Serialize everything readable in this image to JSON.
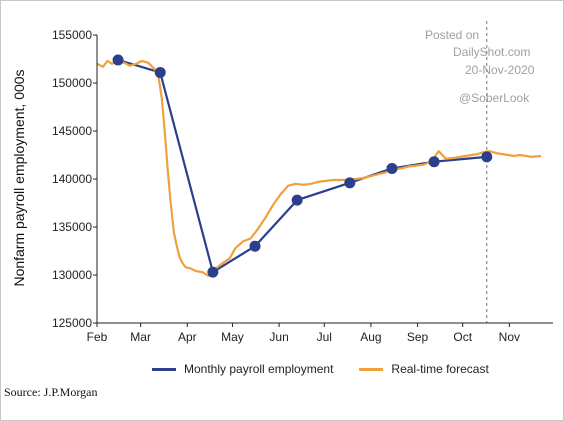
{
  "chart_data": {
    "type": "line",
    "ylabel": "Nonfarm payroll employment, 000s",
    "xlabel": "",
    "x_tick_labels": [
      "Feb",
      "Mar",
      "Apr",
      "May",
      "Jun",
      "Jul",
      "Aug",
      "Sep",
      "Oct",
      "Nov"
    ],
    "y_ticks": [
      125000,
      130000,
      135000,
      140000,
      145000,
      150000,
      155000
    ],
    "y_tick_labels": [
      "125000",
      "130000",
      "135000",
      "140000",
      "145000",
      "150000",
      "155000"
    ],
    "ylim": [
      125000,
      155000
    ],
    "xlim": [
      "2020-02-01",
      "2020-11-30"
    ],
    "grid": false,
    "legend_position": "bottom",
    "vertical_marker": "2020-10-17",
    "series": [
      {
        "name": "Monthly payroll employment",
        "color": "#2b3f8c",
        "markers": true,
        "x": [
          "2020-02-15",
          "2020-03-14",
          "2020-04-18",
          "2020-05-16",
          "2020-06-13",
          "2020-07-18",
          "2020-08-15",
          "2020-09-12",
          "2020-10-17"
        ],
        "y": [
          152400,
          151100,
          130300,
          133000,
          137800,
          139600,
          141100,
          141800,
          142300
        ]
      },
      {
        "name": "Real-time forecast",
        "color": "#f0a03c",
        "markers": false,
        "x": [
          "2020-02-01",
          "2020-02-05",
          "2020-02-08",
          "2020-02-11",
          "2020-02-15",
          "2020-02-19",
          "2020-02-23",
          "2020-02-27",
          "2020-03-02",
          "2020-03-06",
          "2020-03-10",
          "2020-03-13",
          "2020-03-15",
          "2020-03-17",
          "2020-03-19",
          "2020-03-21",
          "2020-03-23",
          "2020-03-25",
          "2020-03-27",
          "2020-03-29",
          "2020-03-31",
          "2020-04-03",
          "2020-04-07",
          "2020-04-11",
          "2020-04-15",
          "2020-04-18",
          "2020-04-21",
          "2020-04-25",
          "2020-04-29",
          "2020-05-03",
          "2020-05-08",
          "2020-05-13",
          "2020-05-18",
          "2020-05-23",
          "2020-05-28",
          "2020-06-02",
          "2020-06-07",
          "2020-06-12",
          "2020-06-17",
          "2020-06-22",
          "2020-06-27",
          "2020-07-02",
          "2020-07-07",
          "2020-07-12",
          "2020-07-17",
          "2020-07-22",
          "2020-07-27",
          "2020-08-01",
          "2020-08-06",
          "2020-08-11",
          "2020-08-16",
          "2020-08-21",
          "2020-08-26",
          "2020-08-31",
          "2020-09-05",
          "2020-09-10",
          "2020-09-15",
          "2020-09-20",
          "2020-09-25",
          "2020-09-29",
          "2020-10-03",
          "2020-10-07",
          "2020-10-11",
          "2020-10-15",
          "2020-10-19",
          "2020-10-23",
          "2020-10-27",
          "2020-10-31",
          "2020-11-04",
          "2020-11-08",
          "2020-11-12",
          "2020-11-16",
          "2020-11-22"
        ],
        "y": [
          152000,
          151700,
          152300,
          152000,
          152300,
          152100,
          151800,
          152000,
          152300,
          152100,
          151500,
          150500,
          148500,
          145000,
          141000,
          137500,
          134500,
          133000,
          131800,
          131200,
          130800,
          130700,
          130400,
          130300,
          129900,
          130200,
          130800,
          131300,
          131700,
          132800,
          133500,
          133800,
          134800,
          136000,
          137300,
          138400,
          139300,
          139500,
          139400,
          139500,
          139700,
          139800,
          139900,
          139900,
          139900,
          140000,
          140100,
          140300,
          140500,
          140700,
          141000,
          141100,
          141300,
          141400,
          141500,
          141800,
          142900,
          142100,
          142200,
          142300,
          142400,
          142500,
          142600,
          142800,
          142900,
          142700,
          142600,
          142500,
          142400,
          142500,
          142400,
          142300,
          142400
        ]
      }
    ]
  },
  "watermark": {
    "line1": "Posted on",
    "line2": "DailyShot.com",
    "line3": "20-Nov-2020",
    "line4": "@SoberLook"
  },
  "source": "Source: J.P.Morgan"
}
